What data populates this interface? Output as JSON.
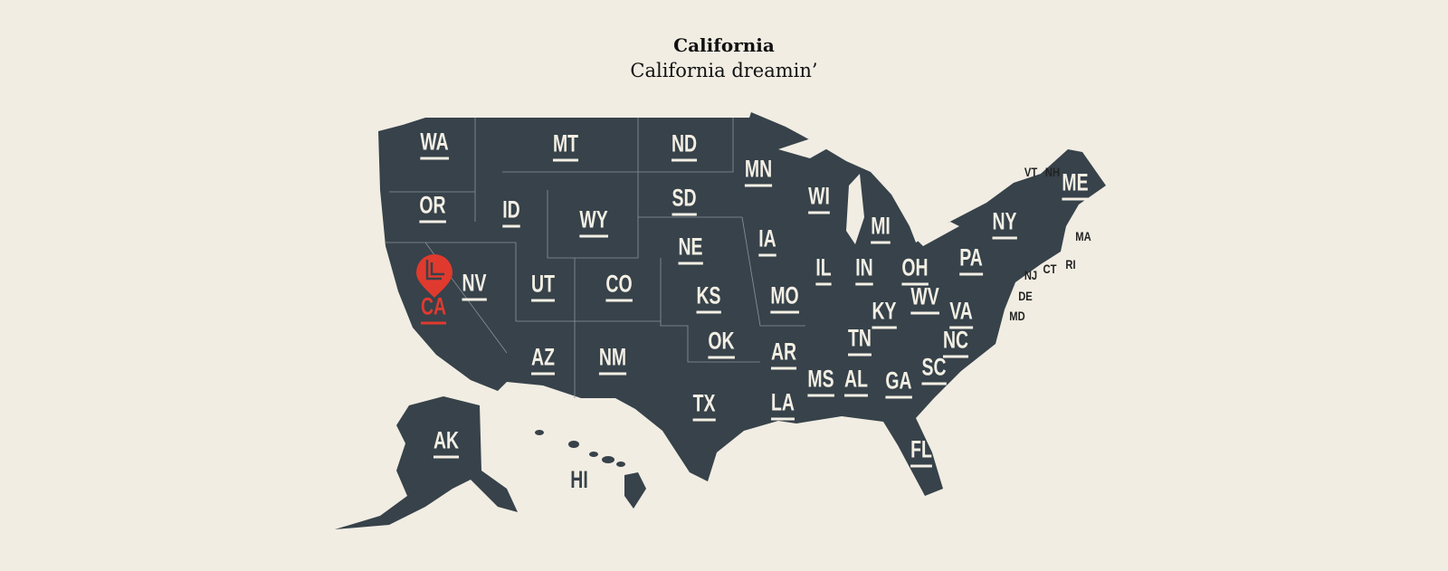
{
  "header": {
    "title": "California",
    "subtitle": "California dreamin’"
  },
  "selected_state": "CA",
  "colors": {
    "background": "#f1ede3",
    "states": "#37424a",
    "labels": "#f3efe4",
    "selected": "#e03a2e"
  },
  "marker_icon": "map-pin-icon",
  "states": [
    "WA",
    "OR",
    "CA",
    "NV",
    "ID",
    "MT",
    "WY",
    "UT",
    "CO",
    "AZ",
    "NM",
    "ND",
    "SD",
    "NE",
    "KS",
    "OK",
    "TX",
    "MN",
    "IA",
    "MO",
    "AR",
    "LA",
    "WI",
    "IL",
    "MI",
    "IN",
    "OH",
    "KY",
    "TN",
    "MS",
    "AL",
    "GA",
    "FL",
    "SC",
    "NC",
    "VA",
    "WV",
    "PA",
    "NY",
    "ME",
    "AK",
    "HI"
  ],
  "small_states": [
    "VT",
    "NH",
    "MA",
    "RI",
    "CT",
    "NJ",
    "DE",
    "MD"
  ]
}
